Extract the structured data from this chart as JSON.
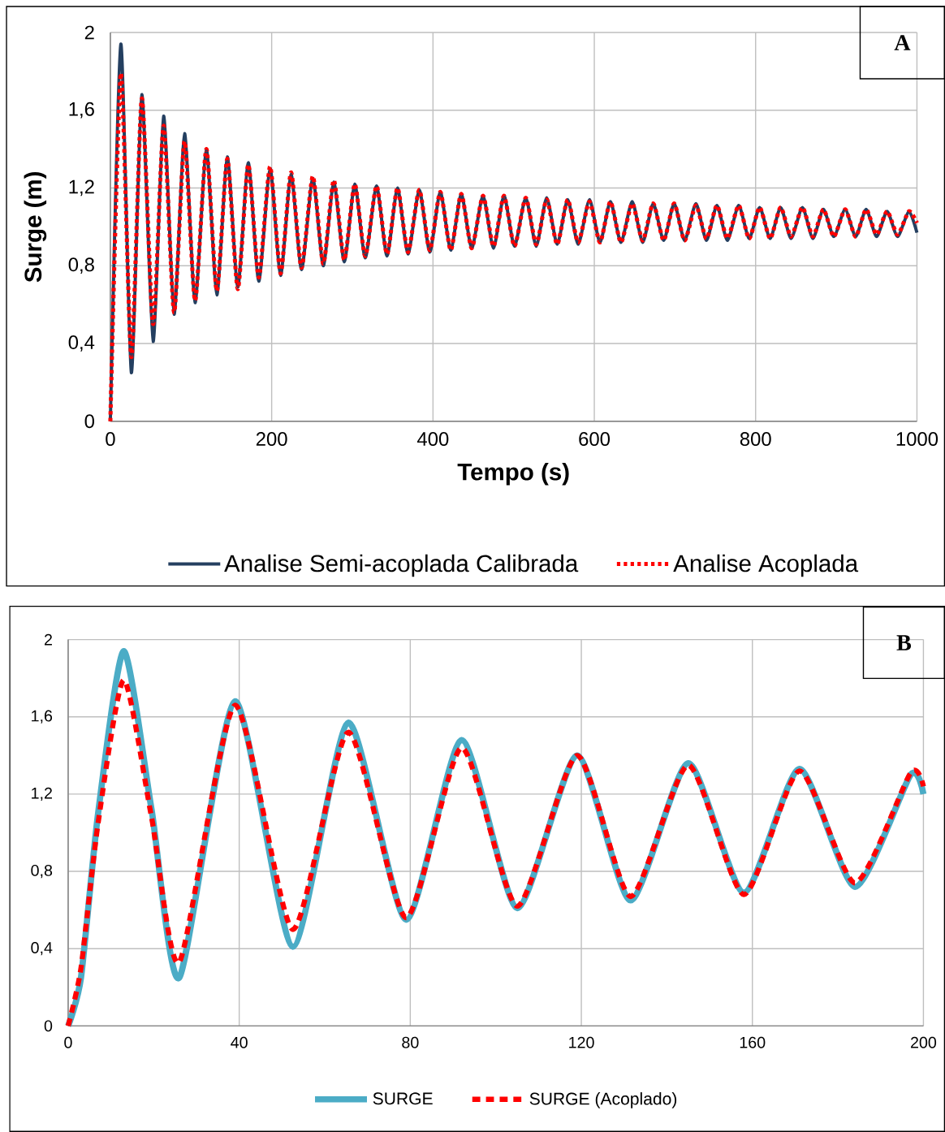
{
  "chart_data": [
    {
      "type": "line",
      "xlabel": "Tempo (s)",
      "ylabel": "Surge (m)",
      "annotations": [
        "A"
      ],
      "x": [
        0,
        13,
        26,
        39,
        53,
        66,
        79,
        92,
        105,
        119,
        132,
        145,
        158,
        171,
        184,
        198,
        211,
        224,
        237,
        251,
        264,
        277,
        290,
        303,
        316,
        330,
        343,
        356,
        369,
        383,
        396,
        409,
        422,
        435,
        448,
        462,
        475,
        488,
        501,
        515,
        528,
        541,
        554,
        567,
        580,
        594,
        607,
        620,
        633,
        647,
        660,
        673,
        686,
        699,
        712,
        726,
        739,
        752,
        765,
        779,
        792,
        805,
        818,
        831,
        844,
        858,
        871,
        884,
        897,
        911,
        924,
        937,
        950,
        963,
        976,
        990,
        1000
      ],
      "series": [
        {
          "name": "Analise Semi-acoplada Calibrada",
          "color": "#243f60",
          "line_style": "solid",
          "values": [
            0,
            1.94,
            0.25,
            1.68,
            0.41,
            1.57,
            0.55,
            1.48,
            0.61,
            1.4,
            0.65,
            1.36,
            0.69,
            1.33,
            0.72,
            1.3,
            0.75,
            1.27,
            0.78,
            1.25,
            0.8,
            1.23,
            0.82,
            1.22,
            0.84,
            1.21,
            0.85,
            1.2,
            0.86,
            1.19,
            0.87,
            1.18,
            0.88,
            1.17,
            0.89,
            1.16,
            0.89,
            1.16,
            0.9,
            1.15,
            0.9,
            1.15,
            0.91,
            1.14,
            0.91,
            1.14,
            0.92,
            1.13,
            0.92,
            1.13,
            0.92,
            1.12,
            0.93,
            1.12,
            0.93,
            1.12,
            0.93,
            1.11,
            0.93,
            1.11,
            0.94,
            1.1,
            0.94,
            1.1,
            0.94,
            1.1,
            0.94,
            1.09,
            0.95,
            1.09,
            0.95,
            1.09,
            0.95,
            1.08,
            0.95,
            1.08,
            0.97
          ]
        },
        {
          "name": "Analise Acoplada",
          "color": "#ff0000",
          "line_style": "dotted",
          "values": [
            0,
            1.79,
            0.33,
            1.66,
            0.5,
            1.52,
            0.56,
            1.44,
            0.62,
            1.4,
            0.67,
            1.35,
            0.68,
            1.32,
            0.74,
            1.31,
            0.76,
            1.28,
            0.79,
            1.26,
            0.81,
            1.24,
            0.83,
            1.22,
            0.85,
            1.21,
            0.86,
            1.2,
            0.87,
            1.19,
            0.88,
            1.18,
            0.88,
            1.17,
            0.89,
            1.16,
            0.9,
            1.16,
            0.9,
            1.15,
            0.91,
            1.14,
            0.91,
            1.14,
            0.92,
            1.13,
            0.92,
            1.13,
            0.92,
            1.12,
            0.93,
            1.12,
            0.93,
            1.12,
            0.93,
            1.11,
            0.94,
            1.11,
            0.94,
            1.11,
            0.94,
            1.1,
            0.94,
            1.1,
            0.95,
            1.1,
            0.95,
            1.09,
            0.95,
            1.09,
            0.95,
            1.09,
            0.96,
            1.08,
            0.96,
            1.08,
            1.02
          ]
        }
      ],
      "xlim": [
        0,
        1000
      ],
      "xticks": [
        0,
        200,
        400,
        600,
        800,
        1000
      ],
      "ylim": [
        0,
        2
      ],
      "yticks": [
        0,
        {
          "value": 0.4,
          "label": "0,4"
        },
        {
          "value": 0.8,
          "label": "0,8"
        },
        {
          "value": 1.2,
          "label": "1,2"
        },
        {
          "value": 1.6,
          "label": "1,6"
        },
        2
      ],
      "grid": true,
      "legend": "bottom"
    },
    {
      "type": "line",
      "annotations": [
        "B"
      ],
      "x": [
        0,
        3,
        7,
        13,
        19.5,
        26,
        39,
        52.5,
        65.5,
        79,
        92,
        105,
        119,
        131.5,
        145,
        158,
        171,
        184,
        197,
        200
      ],
      "series": [
        {
          "name": "SURGE",
          "color": "#4bacc6",
          "line_style": "solid",
          "values": [
            0,
            0.25,
            1.1,
            1.94,
            1.12,
            0.25,
            1.68,
            0.41,
            1.57,
            0.55,
            1.48,
            0.61,
            1.4,
            0.65,
            1.36,
            0.69,
            1.33,
            0.72,
            1.3,
            1.2
          ]
        },
        {
          "name": "SURGE (Acoplado)",
          "color": "#ff0000",
          "line_style": "dashed",
          "values": [
            0,
            0.3,
            1.05,
            1.79,
            1.08,
            0.33,
            1.66,
            0.5,
            1.52,
            0.56,
            1.44,
            0.62,
            1.4,
            0.67,
            1.35,
            0.68,
            1.32,
            0.74,
            1.31,
            1.24
          ]
        }
      ],
      "xlim": [
        0,
        200
      ],
      "xticks": [
        0,
        40,
        80,
        120,
        160,
        200
      ],
      "ylim": [
        0,
        2
      ],
      "yticks": [
        0,
        {
          "value": 0.4,
          "label": "0,4"
        },
        {
          "value": 0.8,
          "label": "0,8"
        },
        {
          "value": 1.2,
          "label": "1,2"
        },
        {
          "value": 1.6,
          "label": "1,6"
        },
        2
      ],
      "grid": true,
      "legend": "bottom"
    }
  ]
}
